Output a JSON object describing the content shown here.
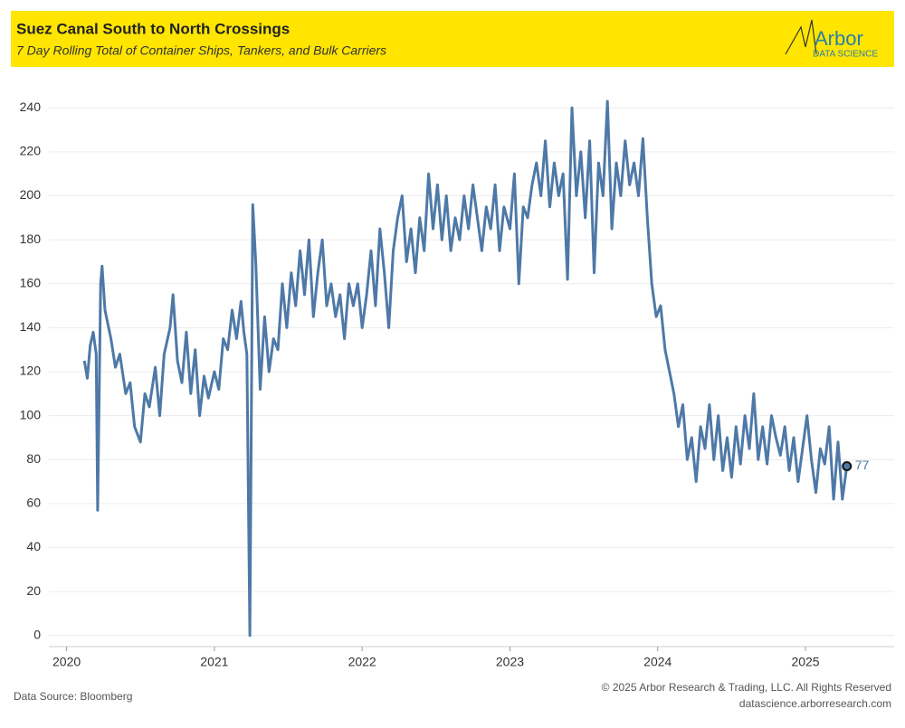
{
  "chart_data": {
    "type": "line",
    "title": "Suez Canal South to North Crossings",
    "subtitle": "7 Day Rolling Total of Container Ships, Tankers, and Bulk Carriers",
    "logo": {
      "name": "Arbor",
      "tagline": "DATA SCIENCE"
    },
    "source": "Data Source: Bloomberg",
    "copyright": "© 2025 Arbor Research & Trading, LLC. All Rights Reserved",
    "website": "datascience.arborresearch.com",
    "color": "#4e79a7",
    "grid": true,
    "xlim": [
      2019.88,
      2025.6
    ],
    "xticks": [
      2020,
      2021,
      2022,
      2023,
      2024,
      2025
    ],
    "ylim": [
      -3,
      250
    ],
    "yticks": [
      0,
      20,
      40,
      60,
      80,
      100,
      120,
      140,
      160,
      180,
      200,
      220,
      240
    ],
    "x": [
      2020.12,
      2020.14,
      2020.16,
      2020.18,
      2020.2,
      2020.21,
      2020.23,
      2020.24,
      2020.26,
      2020.3,
      2020.33,
      2020.36,
      2020.4,
      2020.43,
      2020.46,
      2020.5,
      2020.53,
      2020.56,
      2020.6,
      2020.63,
      2020.66,
      2020.7,
      2020.72,
      2020.75,
      2020.78,
      2020.81,
      2020.84,
      2020.87,
      2020.9,
      2020.93,
      2020.96,
      2021.0,
      2021.03,
      2021.06,
      2021.09,
      2021.12,
      2021.15,
      2021.18,
      2021.2,
      2021.22,
      2021.24,
      2021.26,
      2021.28,
      2021.31,
      2021.34,
      2021.37,
      2021.4,
      2021.43,
      2021.46,
      2021.49,
      2021.52,
      2021.55,
      2021.58,
      2021.61,
      2021.64,
      2021.67,
      2021.7,
      2021.73,
      2021.76,
      2021.79,
      2021.82,
      2021.85,
      2021.88,
      2021.91,
      2021.94,
      2021.97,
      2022.0,
      2022.03,
      2022.06,
      2022.09,
      2022.12,
      2022.15,
      2022.18,
      2022.21,
      2022.24,
      2022.27,
      2022.3,
      2022.33,
      2022.36,
      2022.39,
      2022.42,
      2022.45,
      2022.48,
      2022.51,
      2022.54,
      2022.57,
      2022.6,
      2022.63,
      2022.66,
      2022.69,
      2022.72,
      2022.75,
      2022.78,
      2022.81,
      2022.84,
      2022.87,
      2022.9,
      2022.93,
      2022.96,
      2023.0,
      2023.03,
      2023.06,
      2023.09,
      2023.12,
      2023.15,
      2023.18,
      2023.21,
      2023.24,
      2023.27,
      2023.3,
      2023.33,
      2023.36,
      2023.39,
      2023.42,
      2023.45,
      2023.48,
      2023.51,
      2023.54,
      2023.57,
      2023.6,
      2023.63,
      2023.66,
      2023.69,
      2023.72,
      2023.75,
      2023.78,
      2023.81,
      2023.84,
      2023.87,
      2023.9,
      2023.93,
      2023.96,
      2023.99,
      2024.02,
      2024.05,
      2024.08,
      2024.11,
      2024.14,
      2024.17,
      2024.2,
      2024.23,
      2024.26,
      2024.29,
      2024.32,
      2024.35,
      2024.38,
      2024.41,
      2024.44,
      2024.47,
      2024.5,
      2024.53,
      2024.56,
      2024.59,
      2024.62,
      2024.65,
      2024.68,
      2024.71,
      2024.74,
      2024.77,
      2024.8,
      2024.83,
      2024.86,
      2024.89,
      2024.92,
      2024.95,
      2024.98,
      2025.01,
      2025.04,
      2025.07,
      2025.1,
      2025.13,
      2025.16,
      2025.19,
      2025.22,
      2025.25,
      2025.28
    ],
    "values": [
      125,
      117,
      132,
      138,
      128,
      57,
      160,
      168,
      148,
      135,
      122,
      128,
      110,
      115,
      95,
      88,
      110,
      104,
      122,
      100,
      128,
      140,
      155,
      125,
      115,
      138,
      110,
      130,
      100,
      118,
      108,
      120,
      112,
      135,
      130,
      148,
      135,
      152,
      138,
      128,
      0,
      196,
      170,
      112,
      145,
      120,
      135,
      130,
      160,
      140,
      165,
      150,
      175,
      155,
      180,
      145,
      165,
      180,
      150,
      160,
      145,
      155,
      135,
      160,
      150,
      160,
      140,
      155,
      175,
      150,
      185,
      165,
      140,
      175,
      190,
      200,
      170,
      185,
      165,
      190,
      175,
      210,
      185,
      205,
      180,
      200,
      175,
      190,
      180,
      200,
      185,
      205,
      190,
      175,
      195,
      185,
      205,
      175,
      195,
      185,
      210,
      160,
      195,
      190,
      205,
      215,
      200,
      225,
      195,
      215,
      200,
      210,
      162,
      240,
      200,
      220,
      190,
      225,
      165,
      215,
      200,
      243,
      185,
      215,
      200,
      225,
      205,
      215,
      200,
      226,
      190,
      160,
      145,
      150,
      130,
      120,
      110,
      95,
      105,
      80,
      90,
      70,
      95,
      85,
      105,
      80,
      100,
      75,
      90,
      72,
      95,
      78,
      100,
      85,
      110,
      80,
      95,
      78,
      100,
      90,
      82,
      95,
      75,
      90,
      70,
      85,
      100,
      80,
      65,
      85,
      78,
      95,
      62,
      88,
      62,
      77
    ]
  }
}
